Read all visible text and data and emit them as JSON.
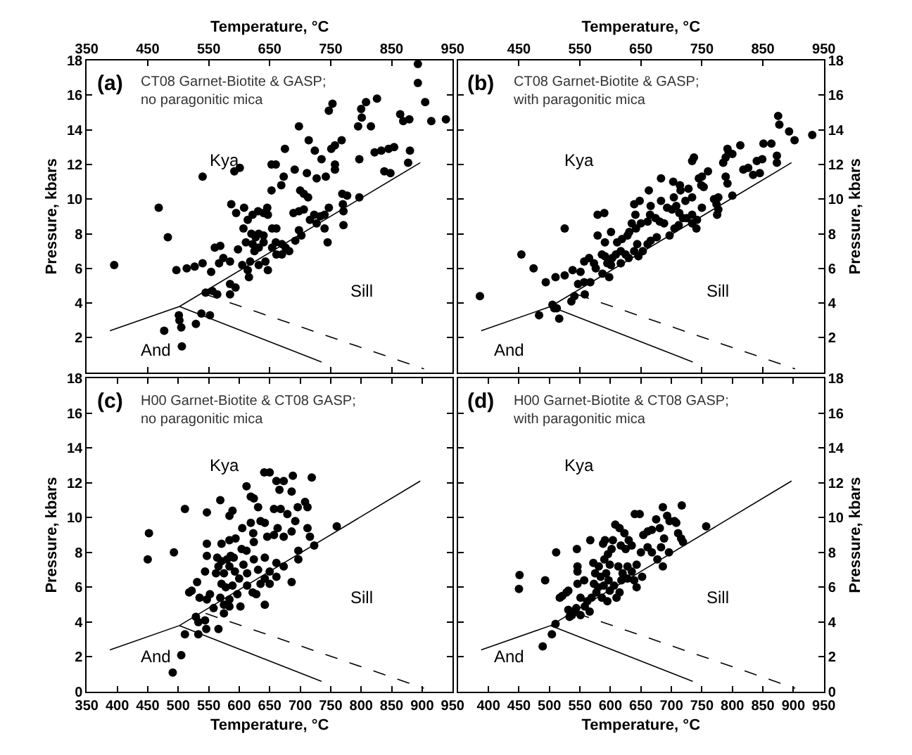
{
  "chart_data": [
    {
      "type": "scatter",
      "title": "(a)",
      "subtitle": "CT08 Garnet-Biotite & GASP;\nno paragonitic mica",
      "xlabel": "Temperature, °C",
      "ylabel": "Pressure, kbars",
      "xlim": [
        350,
        950
      ],
      "xticks": [
        350,
        450,
        550,
        650,
        750,
        850,
        950
      ],
      "ylim": [
        0,
        18
      ],
      "yticks": [
        {
          "value": 0,
          "label": null
        },
        2,
        4,
        6,
        8,
        10,
        12,
        14,
        16,
        18
      ],
      "legend": false,
      "annotations": [
        "Kya",
        "Sill",
        "And"
      ],
      "series": [
        {
          "type": "line",
          "color": "#000000",
          "x": [
            388,
            502,
            897
          ],
          "values": [
            2.4,
            3.8,
            12.1
          ]
        },
        {
          "type": "line",
          "color": "#000000",
          "x": [
            502,
            735
          ],
          "values": [
            3.8,
            0.6
          ]
        },
        {
          "type": "line",
          "color": "#000000",
          "line_style": "dashed",
          "x": [
            545,
            903
          ],
          "values": [
            4.5,
            0.2
          ]
        },
        {
          "marker": "circle",
          "color": "#000000",
          "x": [
            395,
            468,
            483,
            540,
            497,
            514,
            527,
            540,
            477,
            501,
            502,
            505,
            506,
            529,
            538,
            552,
            545,
            556,
            564,
            560,
            569,
            554,
            567,
            574,
            585,
            585,
            585,
            594,
            587,
            595,
            608,
            592,
            601,
            598,
            611,
            605,
            614,
            616,
            607,
            614,
            622,
            620,
            627,
            632,
            640,
            622,
            625,
            632,
            640,
            618,
            632,
            643,
            647,
            631,
            640,
            647,
            646,
            653,
            669,
            653,
            660,
            673,
            675,
            698,
            691,
            711,
            700,
            706,
            713,
            689,
            698,
            706,
            654,
            661,
            660,
            654,
            670,
            676,
            661,
            670,
            682,
            698,
            702,
            692,
            716,
            723,
            727,
            733,
            740,
            714,
            724,
            735,
            727,
            742,
            757,
            757,
            740,
            745,
            747,
            751,
            757,
            768,
            747,
            753,
            769,
            777,
            770,
            771,
            771,
            797,
            797,
            800,
            801,
            795,
            808,
            816,
            826,
            822,
            833,
            845,
            854,
            838,
            848,
            864,
            869,
            879,
            880,
            877,
            893,
            893,
            905,
            915,
            939
          ],
          "values": [
            6.2,
            9.5,
            7.8,
            11.3,
            5.9,
            6.0,
            6.1,
            6.3,
            2.4,
            3.3,
            3.0,
            2.6,
            1.5,
            2.8,
            3.4,
            3.3,
            4.6,
            4.7,
            4.5,
            7.2,
            7.3,
            5.8,
            6.3,
            6.6,
            6.4,
            5.1,
            4.5,
            4.9,
            9.7,
            9.2,
            9.5,
            11.6,
            11.8,
            7.1,
            7.5,
            6.2,
            5.9,
            5.5,
            8.3,
            8.8,
            9.1,
            8.0,
            7.8,
            8.0,
            7.9,
            7.4,
            7.0,
            7.2,
            7.5,
            6.4,
            6.2,
            6.4,
            5.9,
            9.3,
            9.2,
            9.1,
            9.5,
            10.5,
            10.8,
            12.0,
            12.0,
            11.3,
            12.9,
            14.2,
            11.7,
            11.5,
            10.5,
            10.3,
            10.1,
            9.2,
            9.3,
            9.4,
            8.3,
            8.3,
            7.5,
            7.2,
            7.4,
            7.2,
            6.8,
            6.8,
            7.0,
            8.2,
            7.9,
            7.6,
            8.8,
            9.1,
            8.6,
            9.0,
            9.1,
            13.4,
            12.8,
            12.3,
            11.2,
            11.3,
            11.7,
            12.0,
            8.3,
            7.5,
            9.5,
            12.9,
            13.1,
            13.4,
            15.1,
            15.5,
            10.3,
            10.2,
            9.7,
            9.3,
            8.5,
            12.3,
            10.1,
            15.2,
            14.7,
            14.2,
            15.6,
            14.2,
            15.8,
            12.7,
            12.8,
            12.9,
            13.0,
            11.6,
            11.5,
            14.9,
            14.5,
            14.6,
            12.8,
            12.1,
            17.8,
            16.7,
            15.6,
            14.5,
            14.6
          ]
        }
      ]
    },
    {
      "type": "scatter",
      "title": "(b)",
      "subtitle": "CT08 Garnet-Biotite & GASP;\nwith paragonitic mica",
      "xlabel": "Temperature, °C",
      "ylabel": "Pressure, kbars",
      "xlim": [
        350,
        950
      ],
      "xticks": [
        450,
        550,
        650,
        750,
        850,
        950
      ],
      "ylim": [
        0,
        18
      ],
      "yticks": [
        {
          "value": 0,
          "label": null
        },
        2,
        4,
        6,
        8,
        10,
        12,
        14,
        16,
        18
      ],
      "legend": false,
      "annotations": [
        "Kya",
        "Sill",
        "And"
      ],
      "series": [
        {
          "type": "line",
          "color": "#000000",
          "x": [
            388,
            502,
            897
          ],
          "values": [
            2.4,
            3.8,
            12.1
          ]
        },
        {
          "type": "line",
          "color": "#000000",
          "x": [
            502,
            735
          ],
          "values": [
            3.8,
            0.6
          ]
        },
        {
          "type": "line",
          "color": "#000000",
          "line_style": "dashed",
          "x": [
            545,
            903
          ],
          "values": [
            4.5,
            0.2
          ]
        },
        {
          "marker": "circle",
          "color": "#000000",
          "x": [
            386,
            454,
            474,
            494,
            510,
            525,
            538,
            525,
            483,
            505,
            508,
            512,
            516,
            536,
            541,
            558,
            547,
            557,
            567,
            551,
            557,
            565,
            573,
            576,
            579,
            590,
            579,
            591,
            601,
            586,
            591,
            595,
            603,
            609,
            587,
            598,
            601,
            611,
            619,
            628,
            631,
            617,
            625,
            639,
            644,
            617,
            630,
            646,
            653,
            635,
            642,
            650,
            661,
            639,
            648,
            641,
            663,
            666,
            683,
            665,
            674,
            681,
            688,
            666,
            661,
            676,
            683,
            693,
            701,
            708,
            713,
            719,
            697,
            705,
            712,
            703,
            714,
            715,
            728,
            704,
            723,
            734,
            725,
            734,
            741,
            734,
            742,
            734,
            737,
            745,
            750,
            749,
            753,
            760,
            750,
            770,
            777,
            774,
            777,
            775,
            785,
            789,
            794,
            800,
            792,
            813,
            789,
            792,
            800,
            818,
            826,
            834,
            845,
            840,
            849,
            851,
            864,
            873,
            873,
            875,
            877,
            893,
            902,
            931
          ],
          "values": [
            4.4,
            6.8,
            6.0,
            5.2,
            5.5,
            5.6,
            5.9,
            8.3,
            3.3,
            3.9,
            3.7,
            3.7,
            3.1,
            4.1,
            4.4,
            4.5,
            5.1,
            5.2,
            5.2,
            5.8,
            6.4,
            6.6,
            6.3,
            6.0,
            9.1,
            9.2,
            7.9,
            7.5,
            8.1,
            6.8,
            6.7,
            6.3,
            6.6,
            6.8,
            5.7,
            5.5,
            6.2,
            7.5,
            7.7,
            7.9,
            8.1,
            7.0,
            6.8,
            7.0,
            7.4,
            6.3,
            6.6,
            6.7,
            7.0,
            8.6,
            8.3,
            8.6,
            8.7,
            9.7,
            9.9,
            9.1,
            10.5,
            9.6,
            9.9,
            9.1,
            8.9,
            8.7,
            8.6,
            7.6,
            7.4,
            7.8,
            11.2,
            9.5,
            9.4,
            9.6,
            9.2,
            8.9,
            7.9,
            8.3,
            8.5,
            11.0,
            10.8,
            10.5,
            10.6,
            10.1,
            9.9,
            10.1,
            8.9,
            9.1,
            8.3,
            8.6,
            8.8,
            12.2,
            12.4,
            11.2,
            11.3,
            10.8,
            10.7,
            11.6,
            9.5,
            10.0,
            10.1,
            9.7,
            9.4,
            9.1,
            12.1,
            12.4,
            12.7,
            12.6,
            12.9,
            13.1,
            11.3,
            10.9,
            10.2,
            11.7,
            11.8,
            11.4,
            11.5,
            12.2,
            12.3,
            13.2,
            13.2,
            12.5,
            12.1,
            14.8,
            14.3,
            13.9,
            13.4,
            13.7
          ]
        }
      ]
    },
    {
      "type": "scatter",
      "title": "(c)",
      "subtitle": "H00 Garnet-Biotite & CT08 GASP;\nno paragonitic mica",
      "xlabel": "Temperature, °C",
      "ylabel": "Pressure, kbars",
      "xlim": [
        350,
        950
      ],
      "xticks": [
        350,
        400,
        450,
        500,
        550,
        600,
        650,
        700,
        750,
        800,
        850,
        900,
        950
      ],
      "ylim": [
        0,
        18
      ],
      "yticks": [
        0,
        2,
        4,
        6,
        8,
        10,
        12,
        14,
        16,
        18
      ],
      "legend": false,
      "annotations": [
        "Kya",
        "Sill",
        "And"
      ],
      "series": [
        {
          "type": "line",
          "color": "#000000",
          "x": [
            388,
            502,
            897
          ],
          "values": [
            2.4,
            3.8,
            12.1
          ]
        },
        {
          "type": "line",
          "color": "#000000",
          "x": [
            502,
            735
          ],
          "values": [
            3.8,
            0.6
          ]
        },
        {
          "type": "line",
          "color": "#000000",
          "line_style": "dashed",
          "x": [
            545,
            903
          ],
          "values": [
            4.5,
            0.2
          ]
        },
        {
          "marker": "circle",
          "color": "#000000",
          "x": [
            452,
            450,
            493,
            511,
            547,
            569,
            491,
            505,
            511,
            533,
            529,
            533,
            544,
            546,
            566,
            518,
            522,
            531,
            535,
            547,
            552,
            558,
            547,
            547,
            544,
            562,
            564,
            571,
            580,
            586,
            591,
            571,
            584,
            594,
            566,
            575,
            584,
            593,
            571,
            578,
            589,
            600,
            569,
            575,
            584,
            597,
            575,
            584,
            602,
            584,
            589,
            605,
            619,
            623,
            612,
            619,
            624,
            604,
            612,
            624,
            607,
            613,
            624,
            631,
            613,
            622,
            635,
            628,
            635,
            642,
            631,
            641,
            650,
            661,
            673,
            666,
            646,
            657,
            663,
            673,
            686,
            642,
            650,
            661,
            673,
            642,
            650,
            661,
            642,
            657,
            668,
            679,
            688,
            686,
            696,
            708,
            712,
            692,
            697,
            697,
            686,
            712,
            716,
            723,
            719,
            760
          ],
          "values": [
            9.1,
            7.6,
            8.0,
            10.5,
            10.3,
            11.0,
            1.1,
            2.1,
            3.3,
            3.3,
            4.3,
            4.0,
            4.1,
            3.6,
            3.6,
            5.7,
            5.8,
            6.3,
            5.4,
            5.3,
            5.6,
            4.8,
            8.5,
            7.8,
            6.9,
            6.8,
            7.7,
            7.5,
            7.6,
            7.8,
            7.7,
            8.5,
            8.7,
            8.8,
            7.2,
            6.8,
            7.2,
            6.9,
            6.2,
            6.0,
            6.1,
            6.5,
            5.4,
            5.0,
            5.3,
            5.6,
            4.5,
            4.9,
            4.9,
            10.1,
            10.4,
            9.4,
            9.7,
            9.1,
            11.8,
            11.2,
            11.1,
            8.2,
            8.1,
            8.6,
            7.3,
            6.8,
            7.6,
            7.0,
            6.1,
            5.7,
            6.2,
            5.6,
            9.8,
            9.7,
            10.6,
            12.6,
            12.6,
            12.1,
            12.1,
            11.6,
            8.9,
            9.0,
            9.4,
            8.9,
            9.2,
            7.7,
            6.9,
            7.4,
            7.2,
            6.5,
            6.2,
            6.6,
            5.0,
            10.5,
            10.5,
            10.2,
            12.4,
            11.5,
            10.6,
            10.9,
            10.6,
            9.8,
            8.1,
            7.6,
            6.3,
            9.4,
            8.9,
            8.4,
            12.3,
            9.5
          ]
        }
      ]
    },
    {
      "type": "scatter",
      "title": "(d)",
      "subtitle": "H00 Garnet-Biotite & CT08 GASP;\nwith paragonitic mica",
      "xlabel": "Temperature, °C",
      "ylabel": "Pressure, kbars",
      "xlim": [
        350,
        950
      ],
      "xticks": [
        400,
        450,
        500,
        550,
        600,
        650,
        700,
        750,
        800,
        850,
        900,
        950
      ],
      "ylim": [
        0,
        18
      ],
      "yticks": [
        0,
        2,
        4,
        6,
        8,
        10,
        12,
        14,
        16,
        18
      ],
      "legend": false,
      "annotations": [
        "Kya",
        "Sill",
        "And"
      ],
      "series": [
        {
          "type": "line",
          "color": "#000000",
          "x": [
            388,
            502,
            897
          ],
          "values": [
            2.4,
            3.8,
            12.1
          ]
        },
        {
          "type": "line",
          "color": "#000000",
          "x": [
            502,
            735
          ],
          "values": [
            3.8,
            0.6
          ]
        },
        {
          "type": "line",
          "color": "#000000",
          "line_style": "dashed",
          "x": [
            545,
            903
          ],
          "values": [
            4.5,
            0.2
          ]
        },
        {
          "marker": "circle",
          "color": "#000000",
          "x": [
            451,
            450,
            493,
            511,
            489,
            504,
            510,
            517,
            521,
            528,
            531,
            533,
            537,
            542,
            531,
            544,
            551,
            558,
            545,
            546,
            546,
            557,
            546,
            551,
            562,
            569,
            577,
            566,
            567,
            572,
            581,
            590,
            599,
            575,
            584,
            593,
            597,
            573,
            580,
            589,
            599,
            606,
            588,
            591,
            596,
            602,
            604,
            586,
            595,
            610,
            615,
            608,
            615,
            623,
            617,
            625,
            630,
            635,
            613,
            620,
            628,
            635,
            643,
            618,
            628,
            639,
            643,
            652,
            640,
            648,
            654,
            661,
            668,
            650,
            661,
            668,
            677,
            683,
            675,
            686,
            693,
            681,
            688,
            697,
            705,
            708,
            696,
            686,
            711,
            716,
            719,
            717,
            757
          ],
          "values": [
            6.7,
            5.9,
            6.4,
            8.0,
            2.6,
            3.3,
            3.9,
            5.4,
            5.5,
            5.7,
            4.7,
            4.3,
            4.4,
            4.6,
            5.8,
            4.8,
            4.4,
            4.9,
            8.2,
            7.2,
            6.9,
            6.4,
            6.2,
            5.4,
            5.2,
            5.4,
            5.7,
            4.6,
            8.7,
            7.4,
            7.2,
            7.6,
            7.3,
            6.8,
            6.6,
            6.8,
            6.4,
            6.2,
            6.0,
            6.1,
            5.8,
            6.1,
            8.5,
            8.7,
            7.9,
            8.2,
            8.7,
            5.4,
            5.2,
            5.4,
            5.7,
            9.6,
            9.4,
            9.1,
            8.4,
            8.2,
            8.7,
            8.4,
            7.2,
            6.8,
            7.2,
            6.9,
            7.3,
            6.4,
            6.5,
            6.4,
            6.0,
            6.6,
            10.2,
            10.2,
            9.0,
            9.2,
            9.3,
            8.0,
            8.3,
            8.0,
            7.6,
            8.3,
            9.9,
            10.6,
            10.1,
            9.4,
            8.8,
            9.8,
            9.8,
            9.7,
            8.0,
            7.2,
            9.1,
            8.8,
            8.6,
            10.7,
            9.5
          ]
        }
      ]
    }
  ]
}
